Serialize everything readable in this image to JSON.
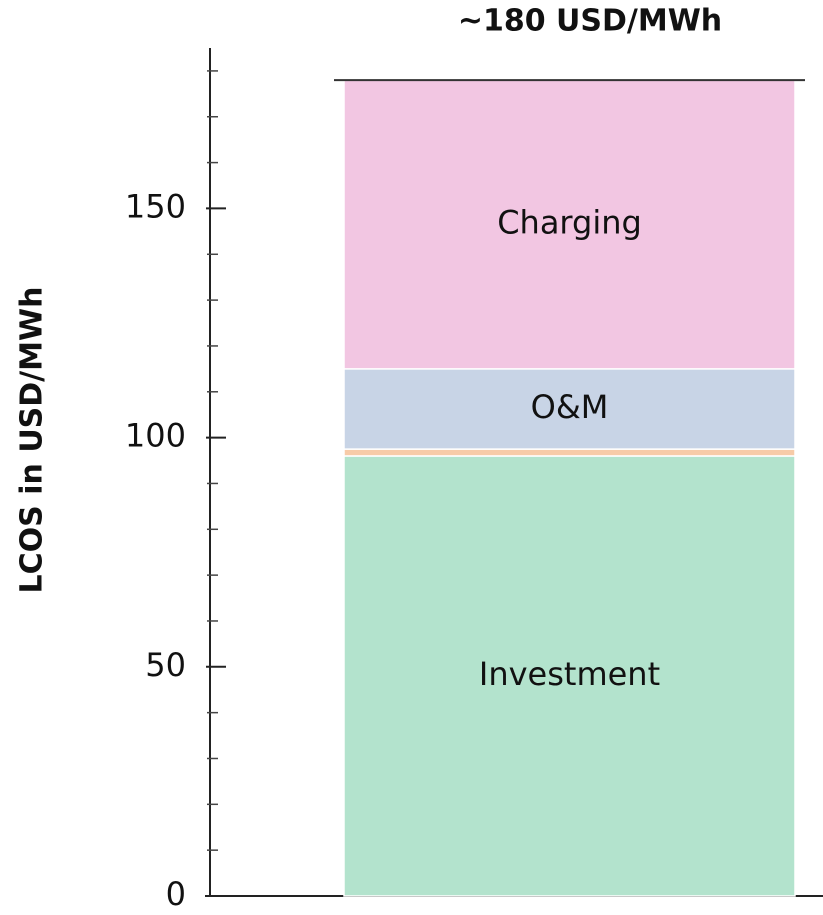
{
  "chart_data": {
    "type": "stacked_bar",
    "annotation": "~180 USD/MWh",
    "y_label": "LCOS in USD/MWh",
    "series": [
      {
        "name": "Investment",
        "color": "#b3e3cd",
        "values": [
          96
        ]
      },
      {
        "color": "#f7cba8",
        "values": [
          1.5
        ]
      },
      {
        "name": "O&M",
        "color": "#c8d4e6",
        "values": [
          17.5
        ]
      },
      {
        "name": "Charging",
        "color": "#f2c6e2",
        "values": [
          63
        ]
      }
    ],
    "ylim": [
      0,
      185
    ],
    "yticks": [
      0,
      50,
      100,
      150
    ],
    "minor_yticks": [
      10,
      20,
      30,
      40,
      60,
      70,
      80,
      90,
      110,
      120,
      130,
      140,
      160,
      170,
      180
    ]
  }
}
